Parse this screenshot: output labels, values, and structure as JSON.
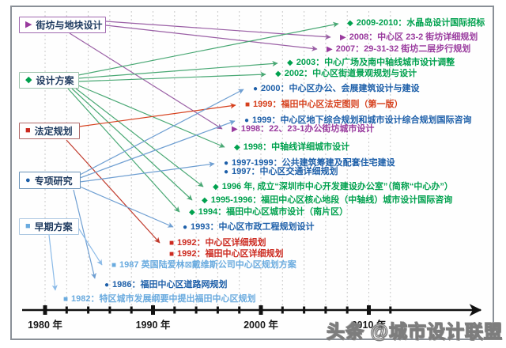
{
  "legend": {
    "categories": [
      {
        "id": "block-design",
        "label": "街坊与地块设计",
        "marker": "▶",
        "color": "#993a9e",
        "border": "#a06ab0",
        "arrow": "#9a5fa5"
      },
      {
        "id": "design-scheme",
        "label": "设计方案",
        "marker": "◆",
        "color": "#00a14e",
        "border": "#9ec3ad",
        "arrow": "#49a874"
      },
      {
        "id": "statutory-plan",
        "label": "法定规划",
        "marker": "■",
        "color": "#cc2a20",
        "border": "#b06a6a",
        "arrow": "#c0392b"
      },
      {
        "id": "special-study",
        "label": "专项研究",
        "marker": "●",
        "color": "#1d5fa9",
        "border": "#6b93b8",
        "arrow": "#6f9fd2"
      },
      {
        "id": "early-scheme",
        "label": "早期方案",
        "marker": "■",
        "color": "#6aabdf",
        "border": "#aec9e2",
        "arrow": "#8cbbe8"
      }
    ]
  },
  "chart_data": {
    "type": "timeline",
    "xlabel_ticks": [
      "1980 年",
      "1990 年",
      "2000 年",
      "2010 年"
    ],
    "axis_range_years": [
      1978,
      2012
    ],
    "events": [
      {
        "text": "2009-2010：水晶岛设计国际招标",
        "category": 1
      },
      {
        "text": "2008：中心区 23-2 街坊详细规划",
        "category": 0
      },
      {
        "text": "2007：29-31-32 街坊二层步行规划",
        "category": 0
      },
      {
        "text": "2003：中心广场及南中轴线城市设计调整",
        "category": 1
      },
      {
        "text": "2002：中心区街道景观规划与设计",
        "category": 1
      },
      {
        "text": "2000：中心区办公、会展建筑设计与建设",
        "category": 3
      },
      {
        "text": "1999：福田中心区法定图则（第一版）",
        "category": 2,
        "color": "#d6401d"
      },
      {
        "text": "1999：中心区地下综合规划和城市设计综合规划国际咨询",
        "category": 3
      },
      {
        "text": "1998：22、23-1办公街坊城市设计",
        "category": 0
      },
      {
        "text": "1998：中轴线详细城市设计",
        "category": 1
      },
      {
        "text": "1997-1999：公共建筑筹建及配套住宅建设",
        "category": 3
      },
      {
        "text": "1997：中心区交通详细规划",
        "category": 3
      },
      {
        "text": "1996 年, 成立“深圳市中心开发建设办公室”（简称“中心办”）",
        "category": 1
      },
      {
        "text": "1995-1996：福田中心区核心地段（中轴线）城市设计国际咨询",
        "category": 1
      },
      {
        "text": "1994：福田中心区城市设计（南片区）",
        "category": 1
      },
      {
        "text": "1993：中心区市政工程规划设计",
        "category": 3
      },
      {
        "text": "1992：中心区详细规划",
        "category": 2
      },
      {
        "text": "1992：福田中心区详细规划",
        "category": 2
      },
      {
        "text": "1987 英国陆爱林⊠戴维斯公司中心区规划方案",
        "category": 4
      },
      {
        "text": "1986：福田中心区道路网规划",
        "category": 3
      },
      {
        "text": "1982：特区城市发展纲要中提出福田中心区规划",
        "category": 4
      }
    ]
  },
  "timeline": {
    "axis_years": [
      "1980 年",
      "1990 年",
      "2000 年",
      "2010 年"
    ]
  },
  "watermark": "头条 @城市设计联盟",
  "colors": {
    "axis": "#111111",
    "gridline": "#c9c9c9",
    "frame_border": "#8a9097"
  }
}
